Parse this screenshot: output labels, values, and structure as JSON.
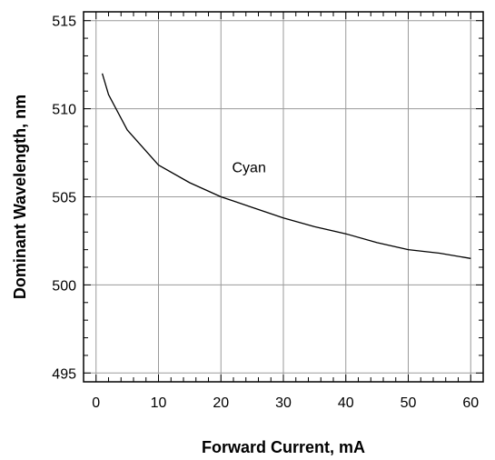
{
  "chart_data": {
    "type": "line",
    "title": "",
    "xlabel": "Forward Current, mA",
    "ylabel": "Dominant Wavelength, nm",
    "xlim": [
      -2,
      62
    ],
    "ylim": [
      494.5,
      515.5
    ],
    "xticks": [
      0,
      10,
      20,
      30,
      40,
      50,
      60
    ],
    "xtick_labels": [
      "0",
      "10",
      "20",
      "30",
      "40",
      "50",
      "60"
    ],
    "yticks": [
      495,
      500,
      505,
      510,
      515
    ],
    "ytick_labels": [
      "495",
      "500",
      "505",
      "510",
      "515"
    ],
    "grid": true,
    "legend": "none",
    "line_color": "#000000",
    "grid_color": "#9a9a9a",
    "series": [
      {
        "x": [
          1,
          2,
          5,
          10,
          15,
          20,
          25,
          30,
          35,
          40,
          45,
          50,
          55,
          60
        ],
        "y": [
          512.0,
          510.8,
          508.8,
          506.8,
          505.8,
          505.0,
          504.4,
          503.8,
          503.3,
          502.9,
          502.4,
          502.0,
          501.8,
          501.5
        ]
      }
    ],
    "annotations": [
      {
        "text": "Cyan",
        "x": 24.5,
        "y": 506.7
      }
    ]
  }
}
